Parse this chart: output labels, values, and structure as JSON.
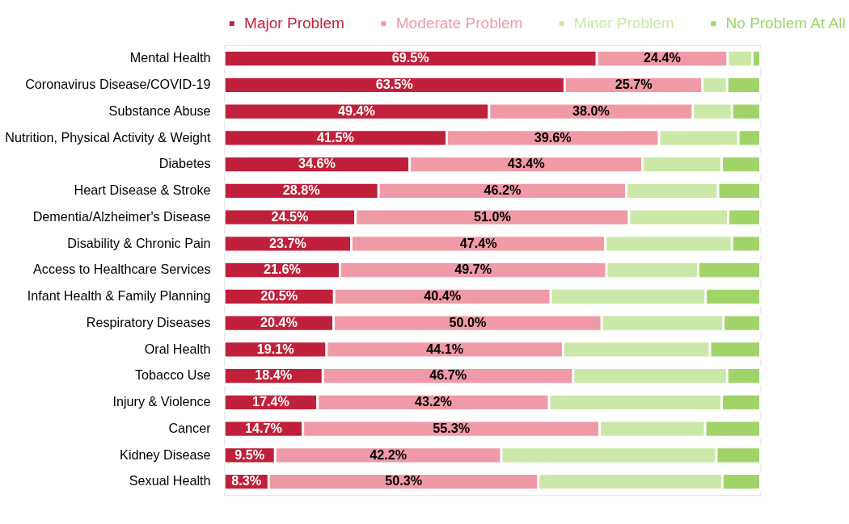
{
  "chart_data": {
    "type": "bar",
    "orientation": "horizontal",
    "stacked": true,
    "legend": "top",
    "xlim": [
      0,
      100
    ],
    "tick_labels": "y",
    "categories": [
      "Mental Health",
      "Coronavirus Disease/COVID-19",
      "Substance Abuse",
      "Nutrition, Physical Activity & Weight",
      "Diabetes",
      "Heart Disease & Stroke",
      "Dementia/Alzheimer's Disease",
      "Disability & Chronic Pain",
      "Access to Healthcare Services",
      "Infant Health & Family Planning",
      "Respiratory Diseases",
      "Oral Health",
      "Tobacco Use",
      "Injury & Violence",
      "Cancer",
      "Kidney Disease",
      "Sexual Health"
    ],
    "series": [
      {
        "name": "Major Problem",
        "color": "#c0203a",
        "values": [
          69.5,
          63.5,
          49.4,
          41.5,
          34.6,
          28.8,
          24.5,
          23.7,
          21.6,
          20.5,
          20.4,
          19.1,
          18.4,
          17.4,
          14.7,
          9.5,
          8.3
        ],
        "value_labels": [
          "69.5%",
          "63.5%",
          "49.4%",
          "41.5%",
          "34.6%",
          "28.8%",
          "24.5%",
          "23.7%",
          "21.6%",
          "20.5%",
          "20.4%",
          "19.1%",
          "18.4%",
          "17.4%",
          "14.7%",
          "9.5%",
          "8.3%"
        ]
      },
      {
        "name": "Moderate Problem",
        "color": "#f09aa8",
        "values": [
          24.4,
          25.7,
          38.0,
          39.6,
          43.4,
          46.2,
          51.0,
          47.4,
          49.7,
          40.4,
          50.0,
          44.1,
          46.7,
          43.2,
          55.3,
          42.2,
          50.3
        ],
        "value_labels": [
          "24.4%",
          "25.7%",
          "38.0%",
          "39.6%",
          "43.4%",
          "46.2%",
          "51.0%",
          "47.4%",
          "49.7%",
          "40.4%",
          "50.0%",
          "44.1%",
          "46.7%",
          "43.2%",
          "55.3%",
          "42.2%",
          "50.3%"
        ]
      },
      {
        "name": "Minor Problem",
        "color": "#cce8a8",
        "values": [
          4.6,
          4.6,
          7.3,
          14.8,
          14.8,
          17.1,
          18.5,
          23.6,
          17.1,
          28.9,
          22.7,
          27.4,
          28.7,
          32.2,
          19.7,
          40.1,
          34.3
        ]
      },
      {
        "name": "No Problem At All",
        "color": "#a0d468",
        "values": [
          1.5,
          6.2,
          5.3,
          4.1,
          7.2,
          7.9,
          6.0,
          5.3,
          11.6,
          10.2,
          6.9,
          9.4,
          6.2,
          7.2,
          10.3,
          8.2,
          7.1
        ]
      }
    ]
  }
}
